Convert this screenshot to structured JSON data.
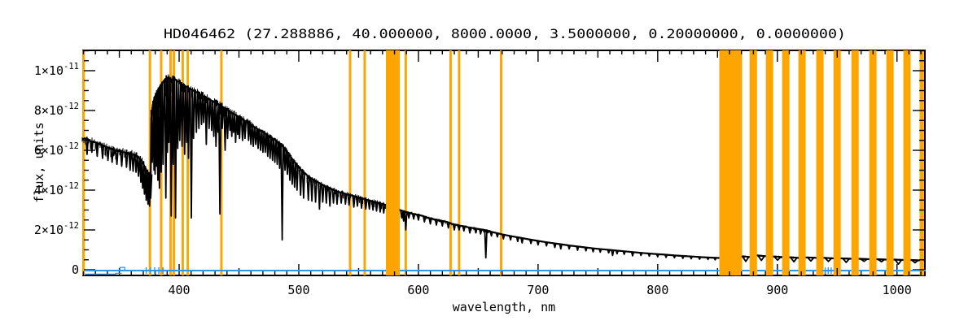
{
  "title": "HD046462    (27.288886, 40.000000, 8000.0000, 3.5000000, 0.20000000, 0.0000000)",
  "colors": {
    "band": "#FFA500",
    "spectrum": "#000000",
    "error_line": "#2E96E8",
    "frame": "#000000",
    "background": "#FFFFFF"
  },
  "chart_data": {
    "type": "line",
    "title": "HD046462    (27.288886, 40.000000, 8000.0000, 3.5000000, 0.20000000, 0.0000000)",
    "xlabel": "wavelength, nm",
    "ylabel": "flux, units",
    "x_range_nm": [
      319,
      1024
    ],
    "y_range_flux": [
      -3.3e-13,
      1.105e-11
    ],
    "flux_point_unit": "1e-12",
    "grid": false,
    "legend": "none",
    "x_major_ticks": [
      400,
      500,
      600,
      700,
      800,
      900,
      1000
    ],
    "x_tick_labels": [
      "400",
      "500",
      "600",
      "700",
      "800",
      "900",
      "1000"
    ],
    "x_minor_step": 10,
    "x_mid_step": 50,
    "y_major_ticks_e12": [
      0,
      2,
      4,
      6,
      8,
      10
    ],
    "y_tick_labels": [
      "0",
      "2×10^-12",
      "4×10^-12",
      "6×10^-12",
      "8×10^-12",
      "1×10^-11"
    ],
    "y_minor_step_e12": 0.5,
    "masked_bands_nm": [
      [
        319.0,
        321.2
      ],
      [
        374.6,
        376.6
      ],
      [
        384.0,
        386.0
      ],
      [
        391.8,
        393.8
      ],
      [
        394.6,
        396.6
      ],
      [
        402.0,
        404.0
      ],
      [
        406.2,
        408.2
      ],
      [
        434.3,
        436.3
      ],
      [
        541.9,
        543.9
      ],
      [
        554.1,
        556.1
      ],
      [
        572.8,
        584.4
      ],
      [
        588.4,
        590.4
      ],
      [
        625.9,
        627.9
      ],
      [
        633.0,
        635.0
      ],
      [
        668.1,
        670.1
      ],
      [
        851.5,
        870.5
      ],
      [
        876.8,
        883.0
      ],
      [
        890.4,
        896.5
      ],
      [
        904.0,
        910.1
      ],
      [
        917.6,
        923.7
      ],
      [
        932.5,
        938.6
      ],
      [
        946.9,
        953.0
      ],
      [
        961.9,
        968.0
      ],
      [
        976.8,
        982.9
      ],
      [
        991.1,
        997.2
      ],
      [
        1005.3,
        1011.4
      ],
      [
        1018.9,
        1022.5
      ]
    ],
    "spectrum_gaps_nm": [
      [
        572.8,
        584.4
      ],
      [
        851.5,
        870.5
      ],
      [
        876.8,
        883.0
      ],
      [
        890.4,
        896.5
      ],
      [
        904.0,
        910.1
      ],
      [
        917.6,
        923.7
      ],
      [
        932.5,
        938.6
      ],
      [
        946.9,
        953.0
      ],
      [
        961.9,
        968.0
      ],
      [
        976.8,
        982.9
      ],
      [
        991.1,
        997.2
      ],
      [
        1005.3,
        1011.4
      ],
      [
        1018.9,
        1022.5
      ]
    ],
    "continuum_points": [
      [
        319,
        6.55
      ],
      [
        321,
        6.6
      ],
      [
        323,
        6.55
      ],
      [
        326,
        6.45
      ],
      [
        330,
        6.4
      ],
      [
        334,
        6.3
      ],
      [
        338,
        6.2
      ],
      [
        342,
        6.1
      ],
      [
        346,
        6.0
      ],
      [
        350,
        5.95
      ],
      [
        354,
        5.9
      ],
      [
        358,
        5.85
      ],
      [
        362,
        5.8
      ],
      [
        365,
        5.7
      ],
      [
        367,
        5.6
      ],
      [
        369,
        5.45
      ],
      [
        371,
        5.2
      ],
      [
        373,
        4.95
      ],
      [
        375,
        4.7
      ],
      [
        376.3,
        4.8
      ],
      [
        376.7,
        7.6
      ],
      [
        378,
        8.3
      ],
      [
        380,
        8.7
      ],
      [
        382,
        9.0
      ],
      [
        384,
        9.2
      ],
      [
        386,
        9.4
      ],
      [
        388,
        9.55
      ],
      [
        390,
        9.65
      ],
      [
        392,
        9.6
      ],
      [
        394,
        9.55
      ],
      [
        396,
        9.6
      ],
      [
        398,
        9.5
      ],
      [
        400,
        9.42
      ],
      [
        403,
        9.3
      ],
      [
        406,
        9.2
      ],
      [
        409,
        9.1
      ],
      [
        412,
        9.0
      ],
      [
        415,
        8.9
      ],
      [
        418,
        8.8
      ],
      [
        421,
        8.7
      ],
      [
        424,
        8.6
      ],
      [
        427,
        8.5
      ],
      [
        430,
        8.4
      ],
      [
        433,
        8.3
      ],
      [
        436,
        8.2
      ],
      [
        439,
        8.1
      ],
      [
        442,
        7.95
      ],
      [
        445,
        7.85
      ],
      [
        448,
        7.75
      ],
      [
        451,
        7.65
      ],
      [
        454,
        7.5
      ],
      [
        457,
        7.4
      ],
      [
        460,
        7.3
      ],
      [
        463,
        7.15
      ],
      [
        466,
        7.05
      ],
      [
        469,
        6.95
      ],
      [
        472,
        6.85
      ],
      [
        475,
        6.7
      ],
      [
        478,
        6.6
      ],
      [
        481,
        6.5
      ],
      [
        484,
        6.35
      ],
      [
        486,
        6.25
      ],
      [
        488,
        6.1
      ],
      [
        490,
        5.95
      ],
      [
        492,
        5.8
      ],
      [
        494,
        5.6
      ],
      [
        496,
        5.45
      ],
      [
        498,
        5.3
      ],
      [
        500,
        5.15
      ],
      [
        502,
        5.0
      ],
      [
        504,
        4.9
      ],
      [
        506,
        4.8
      ],
      [
        508,
        4.7
      ],
      [
        510,
        4.6
      ],
      [
        513,
        4.5
      ],
      [
        516,
        4.4
      ],
      [
        519,
        4.3
      ],
      [
        522,
        4.2
      ],
      [
        525,
        4.1
      ],
      [
        528,
        4.05
      ],
      [
        531,
        3.95
      ],
      [
        534,
        3.9
      ],
      [
        537,
        3.85
      ],
      [
        540,
        3.8
      ],
      [
        543,
        3.75
      ],
      [
        546,
        3.7
      ],
      [
        549,
        3.65
      ],
      [
        552,
        3.6
      ],
      [
        555,
        3.55
      ],
      [
        558,
        3.5
      ],
      [
        561,
        3.45
      ],
      [
        564,
        3.4
      ],
      [
        567,
        3.35
      ],
      [
        570,
        3.3
      ],
      [
        572.8,
        3.25
      ],
      [
        584.4,
        3.0
      ],
      [
        587,
        2.95
      ],
      [
        590,
        2.9
      ],
      [
        593,
        2.85
      ],
      [
        596,
        2.8
      ],
      [
        600,
        2.75
      ],
      [
        604,
        2.7
      ],
      [
        608,
        2.6
      ],
      [
        612,
        2.55
      ],
      [
        616,
        2.5
      ],
      [
        620,
        2.45
      ],
      [
        624,
        2.4
      ],
      [
        628,
        2.3
      ],
      [
        632,
        2.25
      ],
      [
        636,
        2.2
      ],
      [
        640,
        2.15
      ],
      [
        645,
        2.1
      ],
      [
        650,
        2.05
      ],
      [
        655,
        2.0
      ],
      [
        660,
        1.92
      ],
      [
        665,
        1.85
      ],
      [
        670,
        1.78
      ],
      [
        675,
        1.72
      ],
      [
        680,
        1.66
      ],
      [
        686,
        1.6
      ],
      [
        692,
        1.53
      ],
      [
        698,
        1.47
      ],
      [
        705,
        1.4
      ],
      [
        712,
        1.34
      ],
      [
        719,
        1.28
      ],
      [
        726,
        1.22
      ],
      [
        733,
        1.17
      ],
      [
        740,
        1.12
      ],
      [
        747,
        1.07
      ],
      [
        754,
        1.03
      ],
      [
        761,
        0.99
      ],
      [
        768,
        0.95
      ],
      [
        775,
        0.91
      ],
      [
        782,
        0.87
      ],
      [
        790,
        0.83
      ],
      [
        798,
        0.79
      ],
      [
        806,
        0.76
      ],
      [
        814,
        0.72
      ],
      [
        822,
        0.69
      ],
      [
        830,
        0.66
      ],
      [
        838,
        0.63
      ],
      [
        845,
        0.61
      ],
      [
        851.5,
        0.59
      ],
      [
        870.5,
        0.68
      ],
      [
        876.8,
        0.64
      ],
      [
        883,
        0.72
      ],
      [
        890.4,
        0.68
      ],
      [
        896.5,
        0.67
      ],
      [
        904,
        0.64
      ],
      [
        910.1,
        0.63
      ],
      [
        917.6,
        0.6
      ],
      [
        923.7,
        0.62
      ],
      [
        932.5,
        0.6
      ],
      [
        938.6,
        0.6
      ],
      [
        946.9,
        0.57
      ],
      [
        953,
        0.57
      ],
      [
        961.9,
        0.55
      ],
      [
        968,
        0.55
      ],
      [
        976.8,
        0.53
      ],
      [
        982.9,
        0.53
      ],
      [
        991.1,
        0.51
      ],
      [
        997.2,
        0.51
      ],
      [
        1005.3,
        0.49
      ],
      [
        1011.4,
        0.49
      ],
      [
        1018.9,
        0.47
      ],
      [
        1022.5,
        0.46
      ],
      [
        1024,
        0.46
      ]
    ],
    "absorption_lines": [
      [
        323,
        5.8
      ],
      [
        327,
        5.9
      ],
      [
        331.5,
        5.7
      ],
      [
        336,
        5.6
      ],
      [
        340.5,
        5.5
      ],
      [
        344,
        5.4
      ],
      [
        348,
        5.3
      ],
      [
        352,
        5.2
      ],
      [
        356,
        5.15
      ],
      [
        359,
        5.0
      ],
      [
        361.5,
        4.95
      ],
      [
        364,
        4.9
      ],
      [
        366,
        4.7
      ],
      [
        368,
        4.4
      ],
      [
        369.5,
        4.1
      ],
      [
        371,
        3.8
      ],
      [
        372.5,
        3.5
      ],
      [
        374,
        3.3
      ],
      [
        375.3,
        3.2
      ],
      [
        376.2,
        3.6
      ],
      [
        377.5,
        5.4
      ],
      [
        379,
        5.0
      ],
      [
        379.9,
        4.8
      ],
      [
        381.2,
        5.2
      ],
      [
        382.2,
        4.5
      ],
      [
        383.5,
        4.1
      ],
      [
        385,
        4.9
      ],
      [
        386.6,
        5.3
      ],
      [
        388.9,
        3.6
      ],
      [
        390.2,
        5.9
      ],
      [
        391.5,
        6.4
      ],
      [
        393.4,
        2.7
      ],
      [
        395.1,
        5.3
      ],
      [
        397,
        2.6
      ],
      [
        398.8,
        6.1
      ],
      [
        400.5,
        6.5
      ],
      [
        402.4,
        6.2
      ],
      [
        404.6,
        5.8
      ],
      [
        406.3,
        6.4
      ],
      [
        407.8,
        5.6
      ],
      [
        410.2,
        2.6
      ],
      [
        412,
        6.6
      ],
      [
        414.4,
        6.9
      ],
      [
        416.5,
        7.1
      ],
      [
        418.7,
        7.3
      ],
      [
        420.5,
        7.4
      ],
      [
        422.7,
        6.3
      ],
      [
        425,
        7.1
      ],
      [
        427.2,
        7.0
      ],
      [
        429,
        6.7
      ],
      [
        430.8,
        6.2
      ],
      [
        432.5,
        6.9
      ],
      [
        434.05,
        2.8
      ],
      [
        436,
        7.1
      ],
      [
        438.4,
        6.0
      ],
      [
        440.5,
        6.6
      ],
      [
        442.5,
        7.0
      ],
      [
        444,
        6.7
      ],
      [
        445.5,
        6.9
      ],
      [
        447.2,
        6.4
      ],
      [
        449,
        6.8
      ],
      [
        450.5,
        6.6
      ],
      [
        453,
        6.5
      ],
      [
        455,
        6.6
      ],
      [
        458,
        6.5
      ],
      [
        460,
        6.3
      ],
      [
        462,
        6.2
      ],
      [
        464,
        6.3
      ],
      [
        466,
        6.1
      ],
      [
        468,
        6.0
      ],
      [
        470,
        5.9
      ],
      [
        472,
        5.9
      ],
      [
        474,
        5.7
      ],
      [
        476,
        5.6
      ],
      [
        478,
        5.5
      ],
      [
        480,
        5.4
      ],
      [
        482,
        5.3
      ],
      [
        484,
        5.1
      ],
      [
        486.15,
        1.5
      ],
      [
        488.5,
        5.0
      ],
      [
        490.5,
        4.8
      ],
      [
        492.5,
        4.5
      ],
      [
        494.5,
        4.3
      ],
      [
        496.5,
        4.15
      ],
      [
        498.5,
        4.0
      ],
      [
        501.5,
        3.75
      ],
      [
        504,
        3.6
      ],
      [
        508,
        3.5
      ],
      [
        511,
        3.45
      ],
      [
        514,
        3.4
      ],
      [
        517.3,
        3.05
      ],
      [
        520,
        3.4
      ],
      [
        523,
        3.35
      ],
      [
        526,
        3.2
      ],
      [
        529,
        3.35
      ],
      [
        532,
        3.3
      ],
      [
        535.5,
        3.35
      ],
      [
        539,
        3.3
      ],
      [
        542,
        3.25
      ],
      [
        546,
        3.15
      ],
      [
        549,
        3.2
      ],
      [
        552.5,
        3.1
      ],
      [
        556,
        3.05
      ],
      [
        559,
        3.05
      ],
      [
        562,
        3.0
      ],
      [
        565,
        2.95
      ],
      [
        568,
        2.9
      ],
      [
        571,
        2.85
      ],
      [
        586,
        2.6
      ],
      [
        587.6,
        2.45
      ],
      [
        589.4,
        2.0
      ],
      [
        592,
        2.6
      ],
      [
        596,
        2.55
      ],
      [
        600,
        2.5
      ],
      [
        605,
        2.4
      ],
      [
        610,
        2.3
      ],
      [
        615,
        2.25
      ],
      [
        620,
        2.2
      ],
      [
        625,
        2.1
      ],
      [
        630,
        2.0
      ],
      [
        634,
        2.0
      ],
      [
        638,
        1.95
      ],
      [
        643,
        1.85
      ],
      [
        648,
        1.85
      ],
      [
        652,
        1.8
      ],
      [
        656.3,
        0.6
      ],
      [
        661,
        1.7
      ],
      [
        666,
        1.65
      ],
      [
        671,
        1.55
      ],
      [
        677,
        1.5
      ],
      [
        683,
        1.42
      ],
      [
        686.7,
        1.35
      ],
      [
        694,
        1.32
      ],
      [
        700,
        1.25
      ],
      [
        707,
        1.2
      ],
      [
        714,
        1.12
      ],
      [
        719,
        1.05
      ],
      [
        726,
        1.05
      ],
      [
        733,
        0.98
      ],
      [
        740,
        0.95
      ],
      [
        746,
        0.9
      ],
      [
        752,
        0.88
      ],
      [
        759,
        0.85
      ],
      [
        762.3,
        0.72
      ],
      [
        766,
        0.8
      ],
      [
        772,
        0.78
      ],
      [
        779,
        0.7
      ],
      [
        786,
        0.72
      ],
      [
        793,
        0.68
      ],
      [
        800,
        0.65
      ],
      [
        807,
        0.62
      ],
      [
        814,
        0.6
      ],
      [
        821,
        0.57
      ],
      [
        828,
        0.55
      ],
      [
        835,
        0.53
      ],
      [
        842,
        0.52
      ],
      [
        848,
        0.5
      ],
      [
        873.6,
        0.42,
        4
      ],
      [
        886.7,
        0.47,
        4
      ],
      [
        900.2,
        0.48,
        4
      ],
      [
        913.8,
        0.4,
        4
      ],
      [
        928,
        0.44,
        4
      ],
      [
        942.7,
        0.42,
        4
      ],
      [
        957.5,
        0.37,
        4
      ],
      [
        972.4,
        0.42,
        4
      ],
      [
        987,
        0.4,
        4
      ],
      [
        1001.2,
        0.28,
        4
      ],
      [
        1015.1,
        0.35,
        4
      ]
    ],
    "noise_regions": [
      [
        319,
        367,
        0.5,
        0.2
      ],
      [
        367,
        370.5,
        1.0,
        0.2
      ],
      [
        370.5,
        376.3,
        1.7,
        0.25
      ],
      [
        376.7,
        401,
        1.25,
        0.2
      ],
      [
        401,
        434,
        0.75,
        0.2
      ],
      [
        434,
        460,
        0.65,
        0.2
      ],
      [
        460,
        510,
        0.5,
        0.15
      ],
      [
        510,
        572.8,
        0.28,
        0.12
      ],
      [
        584.4,
        660,
        0.14,
        0.08
      ],
      [
        660,
        851.5,
        0.05,
        0.04
      ],
      [
        870.5,
        1024,
        0.07,
        0.05
      ]
    ],
    "error_series": {
      "name": "error spectrum",
      "main_points": [
        [
          321.5,
          -0.04
        ],
        [
          1024,
          -0.04
        ]
      ],
      "secondary_points": [
        [
          321.5,
          -0.22
        ],
        [
          347,
          -0.22
        ],
        [
          347,
          -0.18
        ],
        [
          352,
          -0.18
        ]
      ],
      "blip_points": [
        [
          350.5,
          -0.04
        ],
        [
          350.5,
          0.12
        ],
        [
          354.5,
          0.12
        ],
        [
          354.5,
          -0.04
        ]
      ],
      "plus_markers_nm": [
        372.5,
        376,
        379.5,
        383,
        386.5,
        940,
        942.5,
        945
      ],
      "marker_flux": -0.04
    }
  }
}
